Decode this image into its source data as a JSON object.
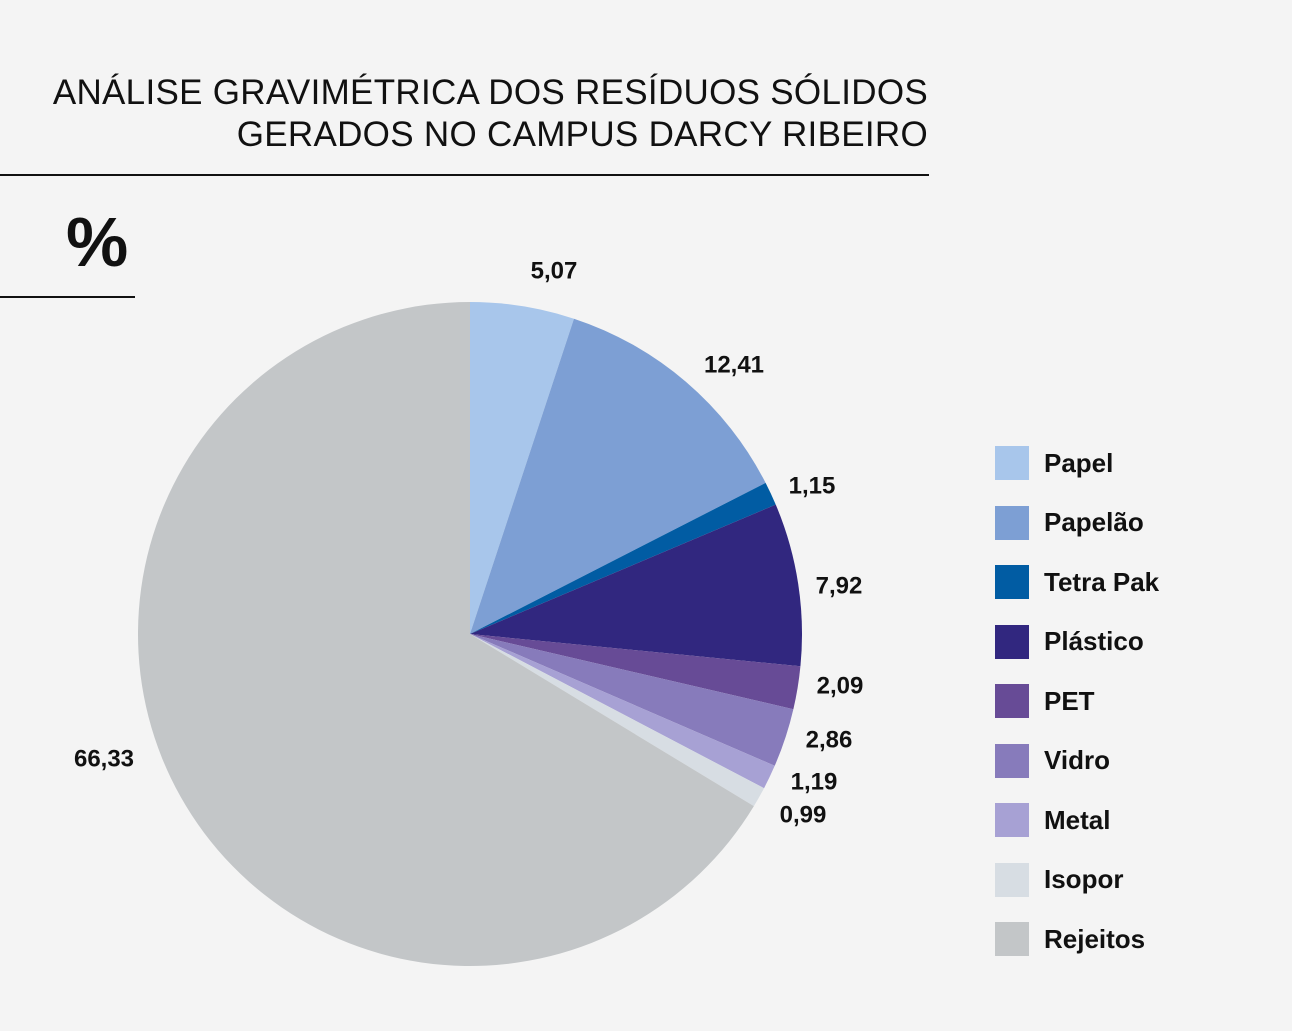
{
  "title_lines": [
    "ANÁLISE GRAVIMÉTRICA DOS RESÍDUOS SÓLIDOS",
    "GERADOS NO CAMPUS DARCY RIBEIRO"
  ],
  "unit": "%",
  "chart_data": {
    "type": "pie",
    "title": "ANÁLISE GRAVIMÉTRICA DOS RESÍDUOS SÓLIDOS GERADOS NO CAMPUS DARCY RIBEIRO",
    "unit": "%",
    "start_angle": "12 o'clock",
    "direction": "clockwise",
    "legend_position": "right",
    "slices": [
      {
        "label": "Papel",
        "value": 5.07,
        "value_label": "5,07",
        "color": "#a8c6eb"
      },
      {
        "label": "Papelão",
        "value": 12.41,
        "value_label": "12,41",
        "color": "#7d9fd4"
      },
      {
        "label": "Tetra Pak",
        "value": 1.15,
        "value_label": "1,15",
        "color": "#015ca3"
      },
      {
        "label": "Plástico",
        "value": 7.92,
        "value_label": "7,92",
        "color": "#31277f"
      },
      {
        "label": "PET",
        "value": 2.09,
        "value_label": "2,09",
        "color": "#674b96"
      },
      {
        "label": "Vidro",
        "value": 2.86,
        "value_label": "2,86",
        "color": "#877bbb"
      },
      {
        "label": "Metal",
        "value": 1.19,
        "value_label": "1,19",
        "color": "#a7a1d4"
      },
      {
        "label": "Isopor",
        "value": 0.99,
        "value_label": "0,99",
        "color": "#d7dde3"
      },
      {
        "label": "Rejeitos",
        "value": 66.33,
        "value_label": "66,33",
        "color": "#c3c6c8"
      }
    ]
  }
}
